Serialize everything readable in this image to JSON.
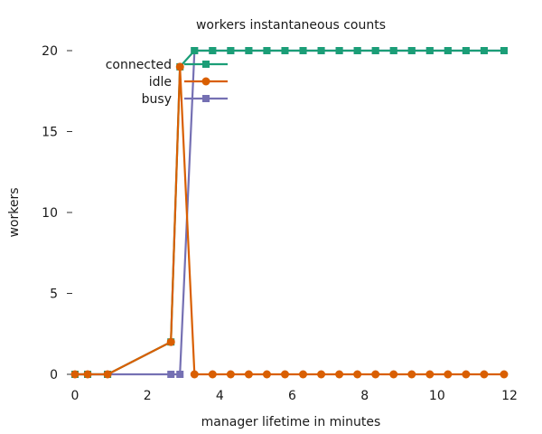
{
  "chart_data": {
    "type": "line",
    "title": "workers instantaneous counts",
    "xlabel": "manager lifetime in minutes",
    "ylabel": "workers",
    "xlim": [
      0,
      12
    ],
    "ylim": [
      0,
      20
    ],
    "xticks": [
      0,
      2,
      4,
      6,
      8,
      10,
      12
    ],
    "yticks": [
      0,
      5,
      10,
      15,
      20
    ],
    "grid": false,
    "legend_position": "top-left",
    "series": [
      {
        "name": "connected",
        "color": "#1b9e77",
        "marker": "square",
        "x": [
          0,
          0.35,
          0.9,
          2.65,
          2.9,
          3.3,
          3.8,
          4.3,
          4.8,
          5.3,
          5.8,
          6.3,
          6.8,
          7.3,
          7.8,
          8.3,
          8.8,
          9.3,
          9.8,
          10.3,
          10.8,
          11.3,
          11.85
        ],
        "y": [
          0,
          0,
          0,
          2,
          19,
          20,
          20,
          20,
          20,
          20,
          20,
          20,
          20,
          20,
          20,
          20,
          20,
          20,
          20,
          20,
          20,
          20,
          20
        ]
      },
      {
        "name": "idle",
        "color": "#d95f02",
        "marker": "circle",
        "x": [
          0,
          0.35,
          0.9,
          2.65,
          2.9,
          3.3,
          3.8,
          4.3,
          4.8,
          5.3,
          5.8,
          6.3,
          6.8,
          7.3,
          7.8,
          8.3,
          8.8,
          9.3,
          9.8,
          10.3,
          10.8,
          11.3,
          11.85
        ],
        "y": [
          0,
          0,
          0,
          2,
          19,
          0,
          0,
          0,
          0,
          0,
          0,
          0,
          0,
          0,
          0,
          0,
          0,
          0,
          0,
          0,
          0,
          0,
          0
        ]
      },
      {
        "name": "busy",
        "color": "#7570b3",
        "marker": "square",
        "x": [
          0,
          0.35,
          0.9,
          2.65,
          2.9,
          3.3,
          3.8,
          4.3,
          4.8,
          5.3,
          5.8,
          6.3,
          6.8,
          7.3,
          7.8,
          8.3,
          8.8,
          9.3,
          9.8,
          10.3,
          10.8,
          11.3,
          11.85
        ],
        "y": [
          0,
          0,
          0,
          0,
          0,
          20,
          20,
          20,
          20,
          20,
          20,
          20,
          20,
          20,
          20,
          20,
          20,
          20,
          20,
          20,
          20,
          20,
          20
        ]
      }
    ]
  }
}
